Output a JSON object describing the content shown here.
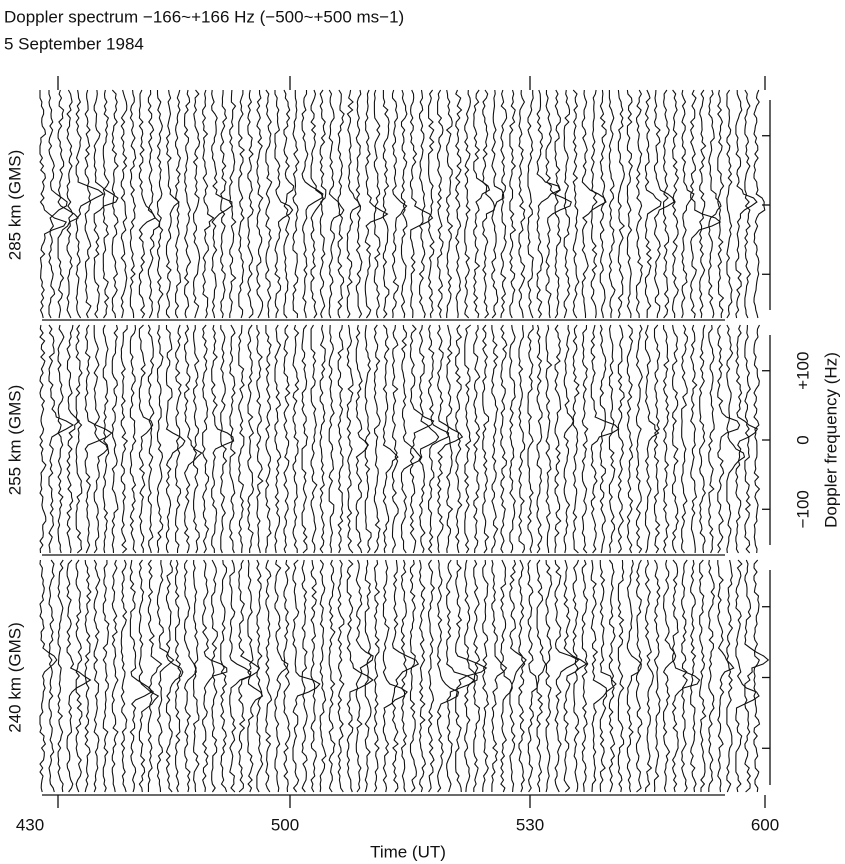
{
  "chart_data": {
    "type": "waterfall",
    "title": "Doppler spectrum −166~+166 Hz (−500~+500 ms−1)",
    "subtitle": "5 September 1984",
    "panels": [
      "285 km (GMS)",
      "255 km (GMS)",
      "240 km (GMS)"
    ],
    "xtick_labels": [
      "430",
      "500",
      "530",
      "600"
    ],
    "x_label": "Time (UT)",
    "y_label": "Doppler frequency (Hz)",
    "ylim": [
      -166,
      166
    ],
    "yticks": [
      {
        "value": -100,
        "label": "−100"
      },
      0,
      {
        "value": 100,
        "label": "+100"
      }
    ]
  }
}
